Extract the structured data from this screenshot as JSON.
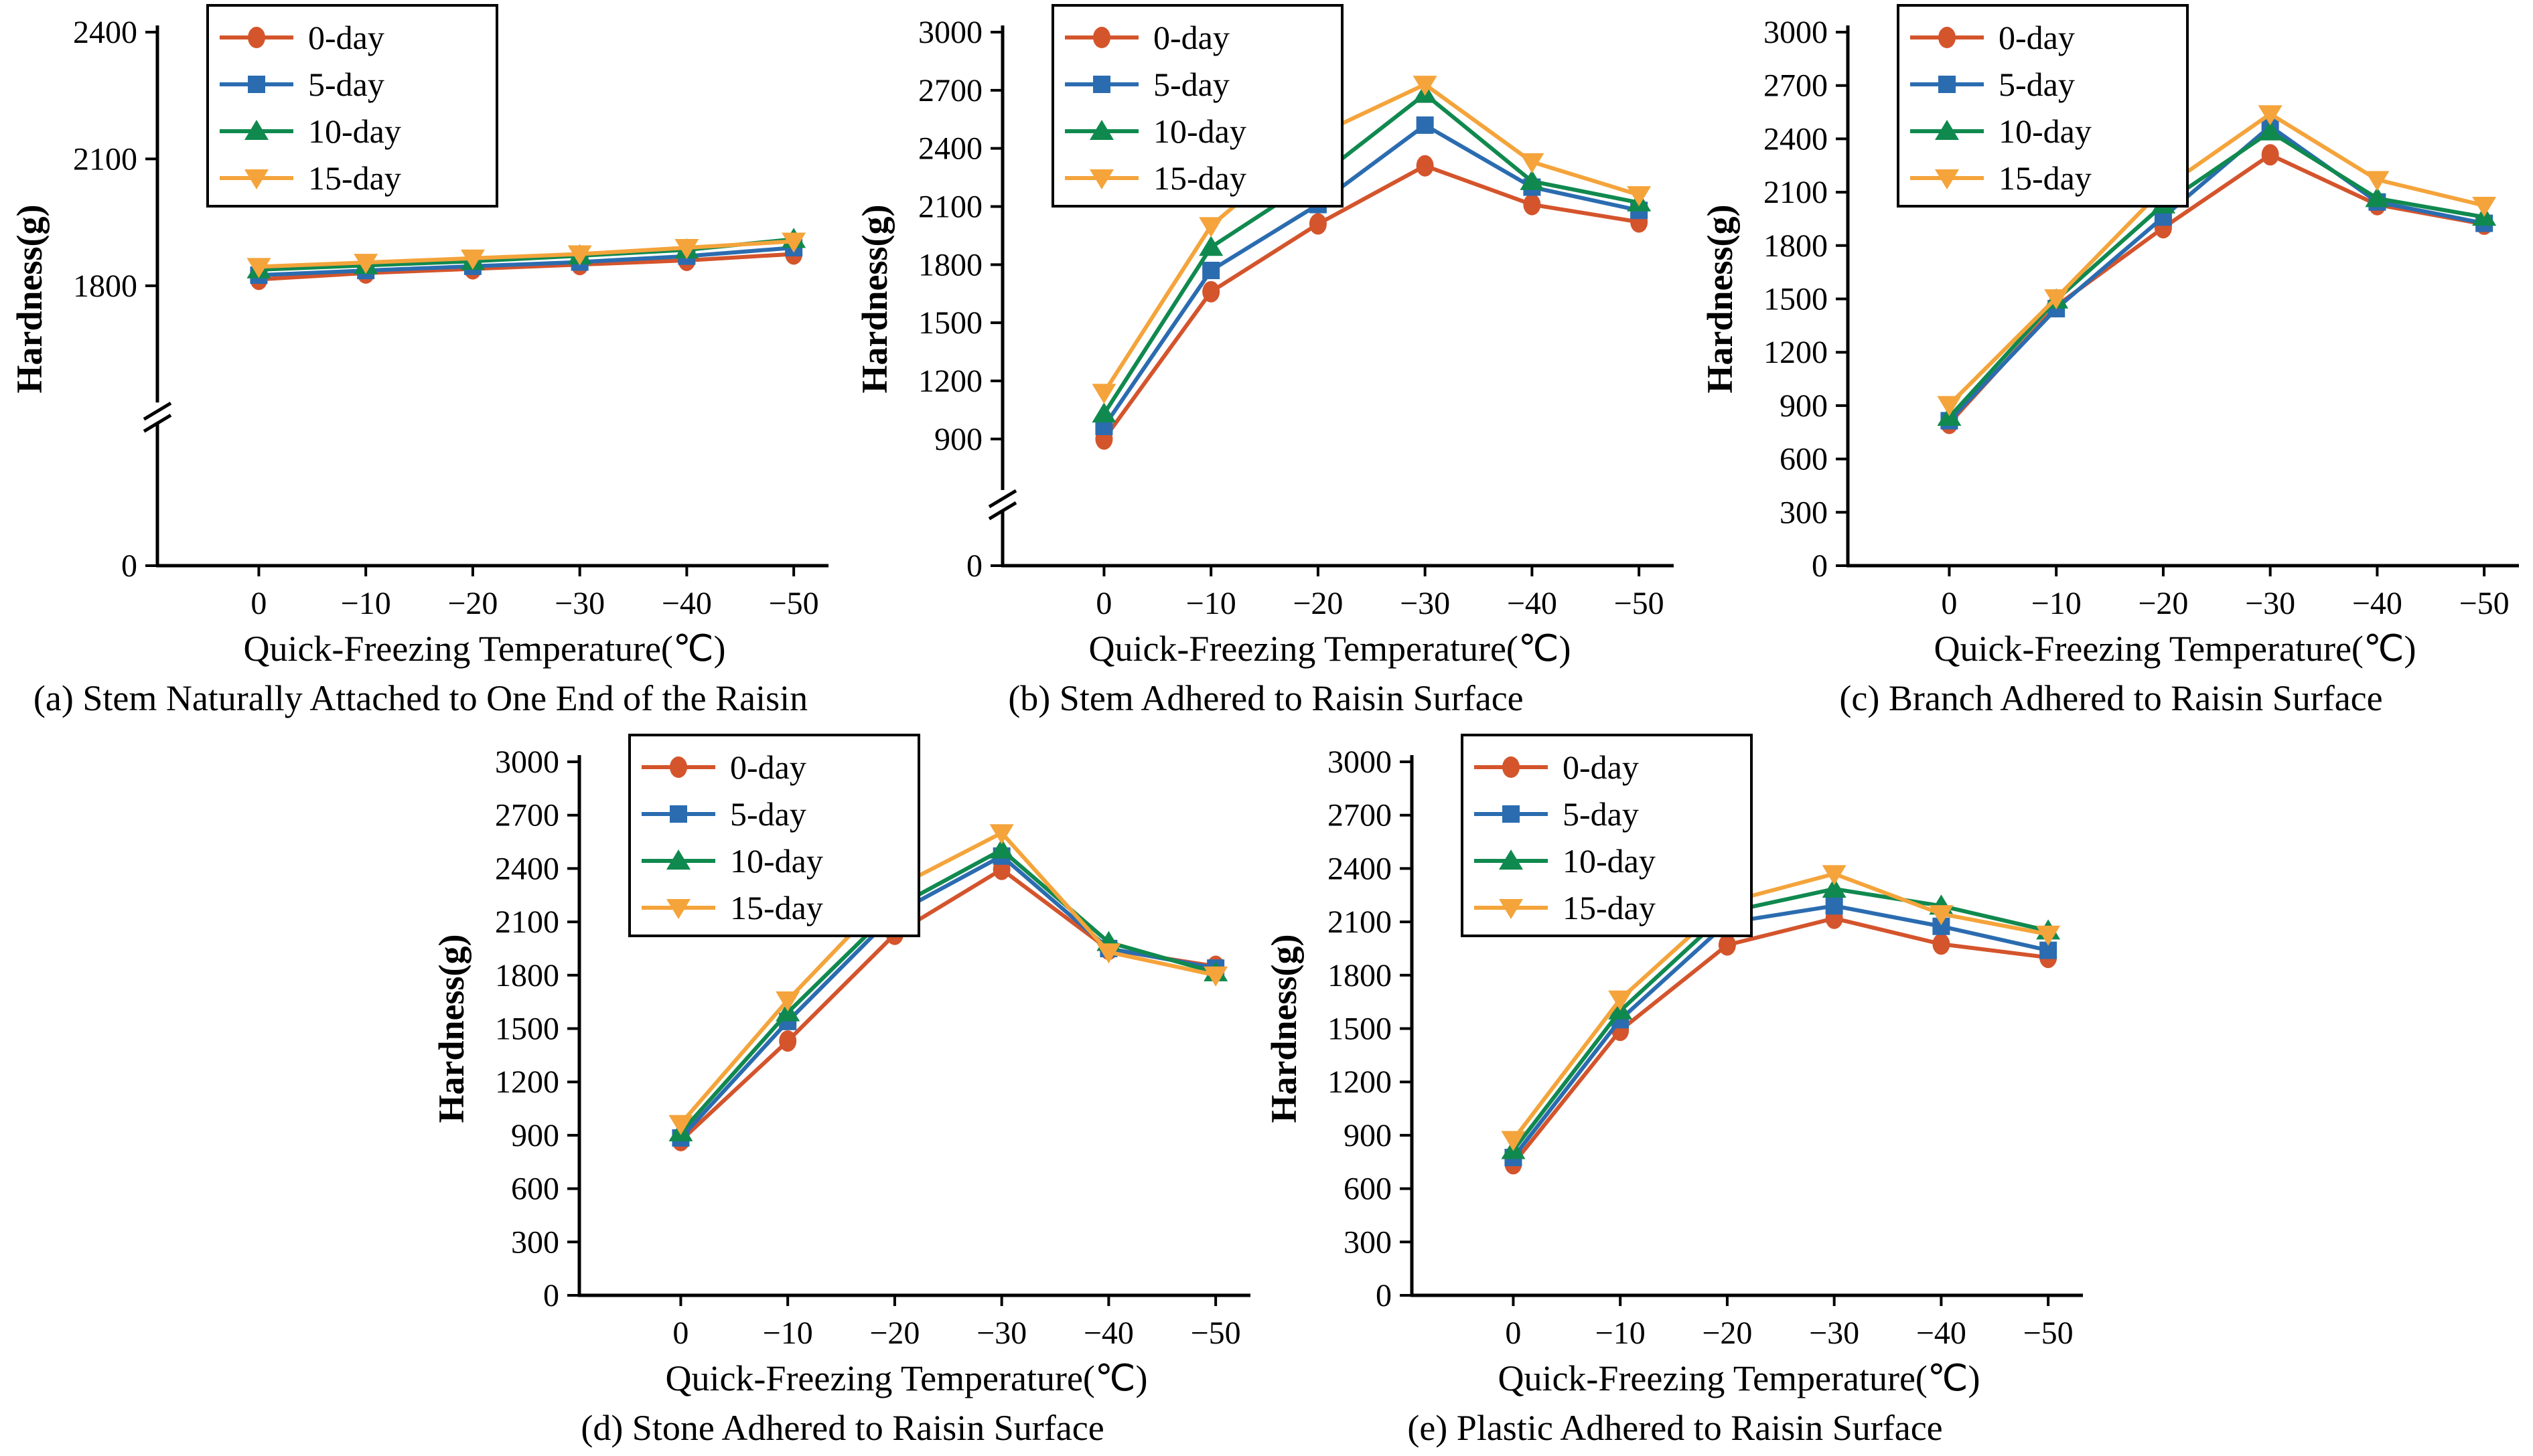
{
  "figure": {
    "xlabel": "Quick-Freezing Temperature(℃)",
    "ylabel": "Hardness(g)",
    "x_categories": [
      "0",
      "−10",
      "−20",
      "−30",
      "−40",
      "−50"
    ],
    "x_values_celsius": [
      0,
      -10,
      -20,
      -30,
      -40,
      -50
    ],
    "series_labels": [
      "0-day",
      "5-day",
      "10-day",
      "15-day"
    ],
    "series_colors": [
      "#D4542C",
      "#2B6CB0",
      "#10894F",
      "#F4A43B"
    ],
    "marker_shapes": [
      "circle",
      "square",
      "triangle-up",
      "triangle-down"
    ],
    "legend_position": "top-left",
    "axis_color": "#000000"
  },
  "chart_data": [
    {
      "id": "a",
      "type": "line",
      "caption": "(a) Stem Naturally Attached to One End of the Raisin",
      "xlabel": "Quick-Freezing Temperature(℃)",
      "ylabel": "Hardness(g)",
      "yticks": [
        0,
        1800,
        2100,
        2400
      ],
      "axis_break": true,
      "axis_break_frac": 0.287,
      "y_anchors": [
        [
          0,
          0
        ],
        [
          1500,
          0.287
        ],
        [
          2400,
          1
        ]
      ],
      "series": [
        {
          "name": "0-day",
          "values": [
            1815,
            1830,
            1840,
            1850,
            1860,
            1875
          ]
        },
        {
          "name": "5-day",
          "values": [
            1825,
            1836,
            1846,
            1856,
            1870,
            1890
          ]
        },
        {
          "name": "10-day",
          "values": [
            1838,
            1848,
            1858,
            1871,
            1885,
            1910
          ]
        },
        {
          "name": "15-day",
          "values": [
            1845,
            1855,
            1865,
            1875,
            1890,
            1905
          ]
        }
      ]
    },
    {
      "id": "b",
      "type": "line",
      "caption": "(b) Stem Adhered to Raisin Surface",
      "xlabel": "Quick-Freezing Temperature(℃)",
      "ylabel": "Hardness(g)",
      "yticks": [
        0,
        900,
        1200,
        1500,
        1800,
        2100,
        2400,
        2700,
        3000
      ],
      "axis_break": true,
      "axis_break_frac": 0.123,
      "y_anchors": [
        [
          0,
          0
        ],
        [
          585,
          0.123
        ],
        [
          3000,
          1
        ]
      ],
      "series": [
        {
          "name": "0-day",
          "values": [
            900,
            1660,
            2010,
            2310,
            2110,
            2020
          ]
        },
        {
          "name": "5-day",
          "values": [
            965,
            1770,
            2110,
            2520,
            2200,
            2080
          ]
        },
        {
          "name": "10-day",
          "values": [
            1030,
            1890,
            2250,
            2680,
            2230,
            2120
          ]
        },
        {
          "name": "15-day",
          "values": [
            1140,
            2000,
            2470,
            2730,
            2330,
            2160
          ]
        }
      ]
    },
    {
      "id": "c",
      "type": "line",
      "caption": "(c) Branch Adhered to Raisin Surface",
      "xlabel": "Quick-Freezing Temperature(℃)",
      "ylabel": "Hardness(g)",
      "yticks": [
        0,
        300,
        600,
        900,
        1200,
        1500,
        1800,
        2100,
        2400,
        2700,
        3000
      ],
      "axis_break": false,
      "y_anchors": [
        [
          0,
          0
        ],
        [
          3000,
          1
        ]
      ],
      "series": [
        {
          "name": "0-day",
          "values": [
            800,
            1460,
            1900,
            2310,
            2030,
            1920
          ]
        },
        {
          "name": "5-day",
          "values": [
            815,
            1445,
            1960,
            2470,
            2045,
            1925
          ]
        },
        {
          "name": "10-day",
          "values": [
            835,
            1495,
            2030,
            2440,
            2065,
            1960
          ]
        },
        {
          "name": "15-day",
          "values": [
            905,
            1505,
            2120,
            2540,
            2170,
            2025
          ]
        }
      ]
    },
    {
      "id": "d",
      "type": "line",
      "caption": "(d) Stone Adhered to Raisin Surface",
      "xlabel": "Quick-Freezing Temperature(℃)",
      "ylabel": "Hardness(g)",
      "yticks": [
        0,
        300,
        600,
        900,
        1200,
        1500,
        1800,
        2100,
        2400,
        2700,
        3000
      ],
      "axis_break": false,
      "y_anchors": [
        [
          0,
          0
        ],
        [
          3000,
          1
        ]
      ],
      "series": [
        {
          "name": "0-day",
          "values": [
            870,
            1430,
            2030,
            2395,
            1945,
            1850
          ]
        },
        {
          "name": "5-day",
          "values": [
            885,
            1540,
            2145,
            2470,
            1950,
            1840
          ]
        },
        {
          "name": "10-day",
          "values": [
            915,
            1590,
            2180,
            2505,
            1985,
            1815
          ]
        },
        {
          "name": "15-day",
          "values": [
            965,
            1660,
            2290,
            2600,
            1930,
            1800
          ]
        }
      ]
    },
    {
      "id": "e",
      "type": "line",
      "caption": "(e) Plastic Adhered to Raisin Surface",
      "xlabel": "Quick-Freezing Temperature(℃)",
      "ylabel": "Hardness(g)",
      "yticks": [
        0,
        300,
        600,
        900,
        1200,
        1500,
        1800,
        2100,
        2400,
        2700,
        3000
      ],
      "axis_break": false,
      "y_anchors": [
        [
          0,
          0
        ],
        [
          3000,
          1
        ]
      ],
      "series": [
        {
          "name": "0-day",
          "values": [
            740,
            1490,
            1970,
            2120,
            1975,
            1900
          ]
        },
        {
          "name": "5-day",
          "values": [
            775,
            1550,
            2095,
            2190,
            2075,
            1940
          ]
        },
        {
          "name": "10-day",
          "values": [
            815,
            1600,
            2155,
            2285,
            2190,
            2050
          ]
        },
        {
          "name": "15-day",
          "values": [
            875,
            1665,
            2210,
            2370,
            2145,
            2030
          ]
        }
      ]
    }
  ]
}
